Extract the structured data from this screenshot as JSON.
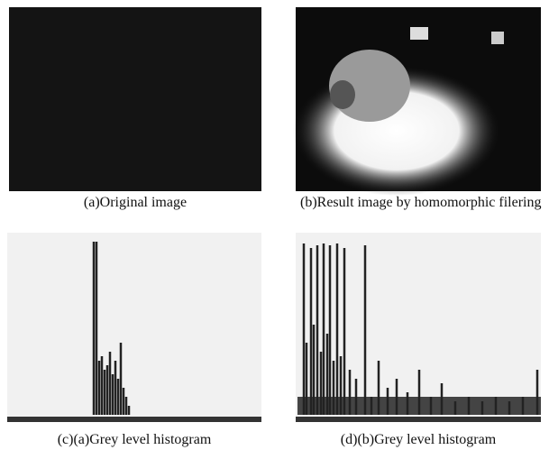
{
  "figure": {
    "captions": [
      "(a)Original image",
      "(b)Result image by homomorphic filering",
      "(c)(a)Grey level histogram",
      "(d)(b)Grey level histogram"
    ]
  }
}
